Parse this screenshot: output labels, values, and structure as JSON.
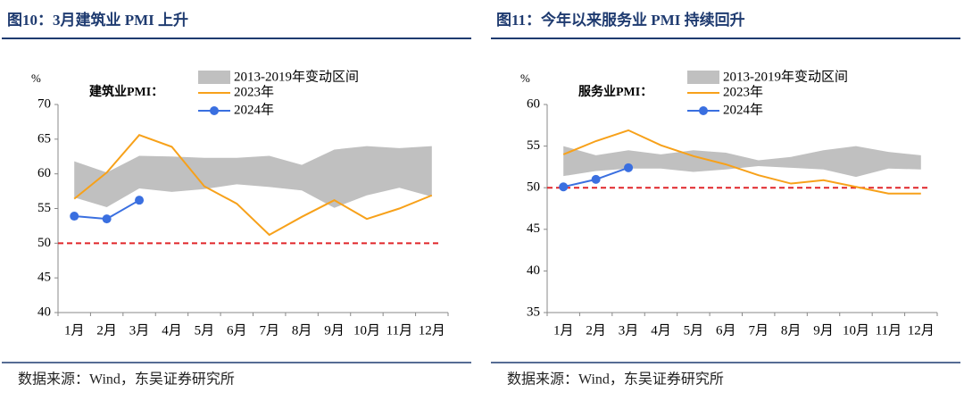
{
  "chart_data": [
    {
      "type": "line",
      "title": "图10：3月建筑业 PMI 上升",
      "unit": "%",
      "annotation": "建筑业PMI：",
      "source": "数据来源：Wind，东吴证券研究所",
      "categories": [
        "1月",
        "2月",
        "3月",
        "4月",
        "5月",
        "6月",
        "7月",
        "8月",
        "9月",
        "10月",
        "11月",
        "12月"
      ],
      "ylim": [
        40,
        70
      ],
      "yticks": [
        40,
        45,
        50,
        55,
        60,
        65,
        70
      ],
      "reference_line": 50,
      "reference_color": "#e0262a",
      "band": {
        "name": "2013-2019年变动区间",
        "color": "#c0c0c0",
        "high": [
          61.8,
          60.2,
          62.6,
          62.5,
          62.3,
          62.3,
          62.6,
          61.3,
          63.5,
          64.0,
          63.7,
          64.0
        ],
        "low": [
          56.6,
          55.2,
          57.9,
          57.4,
          57.8,
          58.5,
          58.1,
          57.6,
          55.1,
          56.9,
          58.0,
          56.7
        ]
      },
      "series": [
        {
          "name": "2023年",
          "color": "#f7a11a",
          "values": [
            56.4,
            60.2,
            65.6,
            63.9,
            58.2,
            55.7,
            51.2,
            53.8,
            56.2,
            53.5,
            55.0,
            56.9
          ]
        },
        {
          "name": "2024年",
          "color": "#3a6fe0",
          "markers": true,
          "values": [
            53.9,
            53.5,
            56.2,
            null,
            null,
            null,
            null,
            null,
            null,
            null,
            null,
            null
          ]
        }
      ]
    },
    {
      "type": "line",
      "title": "图11：今年以来服务业 PMI 持续回升",
      "unit": "%",
      "annotation": "服务业PMI：",
      "source": "数据来源：Wind，东吴证券研究所",
      "categories": [
        "1月",
        "2月",
        "3月",
        "4月",
        "5月",
        "6月",
        "7月",
        "8月",
        "9月",
        "10月",
        "11月",
        "12月"
      ],
      "ylim": [
        35,
        60
      ],
      "yticks": [
        35,
        40,
        45,
        50,
        55,
        60
      ],
      "reference_line": 50,
      "reference_color": "#e0262a",
      "band": {
        "name": "2013-2019年变动区间",
        "color": "#c0c0c0",
        "high": [
          55.0,
          53.9,
          54.5,
          54.0,
          54.5,
          54.2,
          53.3,
          53.7,
          54.5,
          55.0,
          54.3,
          53.9
        ],
        "low": [
          51.4,
          52.0,
          52.3,
          52.3,
          51.9,
          52.2,
          52.6,
          52.4,
          52.2,
          51.3,
          52.3,
          52.2
        ]
      },
      "series": [
        {
          "name": "2023年",
          "color": "#f7a11a",
          "values": [
            54.0,
            55.6,
            56.9,
            55.1,
            53.8,
            52.8,
            51.5,
            50.5,
            50.9,
            50.1,
            49.3,
            49.3
          ]
        },
        {
          "name": "2024年",
          "color": "#3a6fe0",
          "markers": true,
          "values": [
            50.1,
            51.0,
            52.4,
            null,
            null,
            null,
            null,
            null,
            null,
            null,
            null,
            null
          ]
        }
      ]
    }
  ]
}
